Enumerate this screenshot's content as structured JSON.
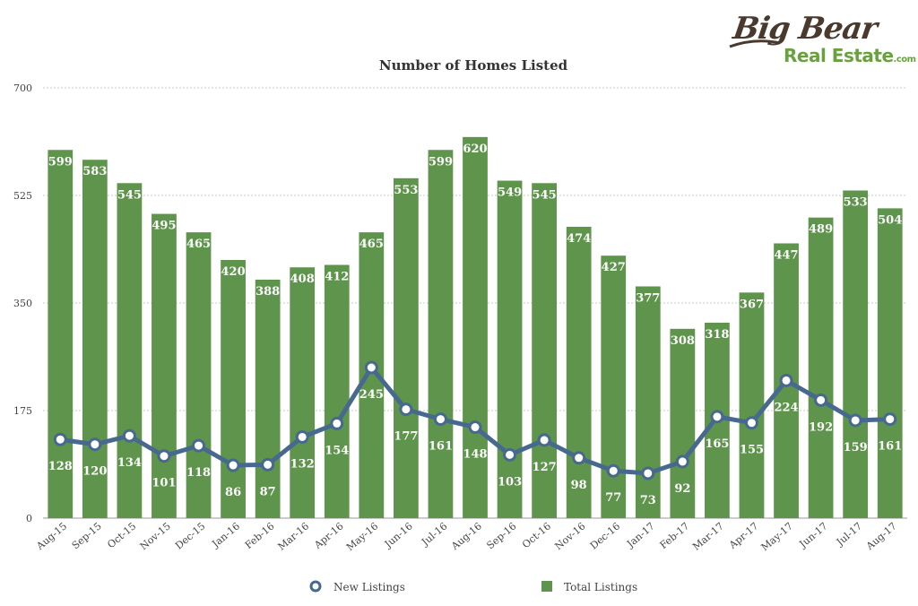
{
  "logo": {
    "line1": "Big Bear",
    "line2": "Real Estate",
    "suffix": ".com"
  },
  "colors": {
    "bar": "#5e944b",
    "line": "#47698f",
    "grid": "#c8c8c8"
  },
  "chart_data": {
    "type": "bar",
    "title": "Number of Homes Listed",
    "xlabel": "",
    "ylabel": "",
    "ylim": [
      0,
      700
    ],
    "yticks": [
      0,
      175,
      350,
      525,
      700
    ],
    "grid": true,
    "legend_position": "bottom",
    "categories": [
      "Aug-15",
      "Sep-15",
      "Oct-15",
      "Nov-15",
      "Dec-15",
      "Jan-16",
      "Feb-16",
      "Mar-16",
      "Apr-16",
      "May-16",
      "Jun-16",
      "Jul-16",
      "Aug-16",
      "Sep-16",
      "Oct-16",
      "Nov-16",
      "Dec-16",
      "Jan-17",
      "Feb-17",
      "Mar-17",
      "Apr-17",
      "May-17",
      "Jun-17",
      "Jul-17",
      "Aug-17"
    ],
    "series": [
      {
        "name": "New Listings",
        "type": "line",
        "values": [
          128,
          120,
          134,
          101,
          118,
          86,
          87,
          132,
          154,
          245,
          177,
          161,
          148,
          103,
          127,
          98,
          77,
          73,
          92,
          165,
          155,
          224,
          192,
          159,
          161
        ]
      },
      {
        "name": "Total Listings",
        "type": "bar",
        "values": [
          599,
          583,
          545,
          495,
          465,
          420,
          388,
          408,
          412,
          465,
          553,
          599,
          620,
          549,
          545,
          474,
          427,
          377,
          308,
          318,
          367,
          447,
          489,
          533,
          504
        ]
      }
    ]
  }
}
